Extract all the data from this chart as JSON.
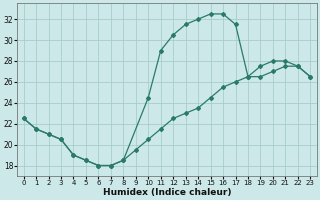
{
  "xlabel": "Humidex (Indice chaleur)",
  "xlim": [
    -0.5,
    23.5
  ],
  "ylim": [
    17,
    33.5
  ],
  "yticks": [
    18,
    20,
    22,
    24,
    26,
    28,
    30,
    32
  ],
  "xticks": [
    0,
    1,
    2,
    3,
    4,
    5,
    6,
    7,
    8,
    9,
    10,
    11,
    12,
    13,
    14,
    15,
    16,
    17,
    18,
    19,
    20,
    21,
    22,
    23
  ],
  "background_color": "#cce8e8",
  "grid_color": "#a8cccc",
  "line_color": "#2a7a6a",
  "curve1_x": [
    0,
    1,
    2,
    3,
    4,
    5,
    6,
    7,
    8,
    10,
    11,
    12,
    13,
    14,
    15,
    16,
    17,
    18,
    19,
    20,
    21,
    22,
    23
  ],
  "curve1_y": [
    22.5,
    21.5,
    21.0,
    20.5,
    19.0,
    18.5,
    18.0,
    18.0,
    18.5,
    24.5,
    29.0,
    30.5,
    31.5,
    32.0,
    32.5,
    32.5,
    31.5,
    26.5,
    27.5,
    28.0,
    28.0,
    27.5,
    26.5
  ],
  "curve2_x": [
    0,
    1,
    2,
    3,
    4,
    5,
    6,
    7,
    8,
    9,
    10,
    11,
    12,
    13,
    14,
    15,
    16,
    17,
    18,
    19,
    20,
    21,
    22,
    23
  ],
  "curve2_y": [
    22.5,
    21.5,
    21.0,
    20.5,
    19.0,
    18.5,
    18.0,
    18.0,
    18.5,
    19.5,
    20.5,
    21.5,
    22.5,
    23.0,
    23.5,
    24.5,
    25.5,
    26.0,
    26.5,
    26.5,
    27.0,
    27.5,
    27.5,
    26.5
  ]
}
